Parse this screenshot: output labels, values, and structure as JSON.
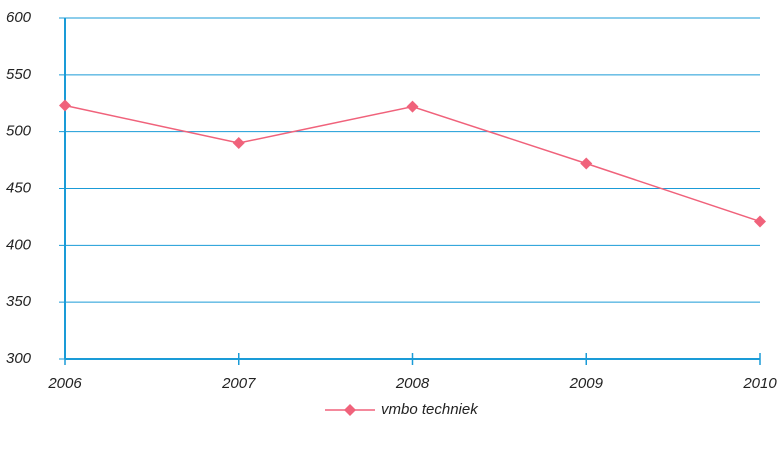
{
  "chart_data": {
    "type": "line",
    "categories": [
      "2006",
      "2007",
      "2008",
      "2009",
      "2010"
    ],
    "series": [
      {
        "name": "vmbo techniek",
        "color": "#f0627b",
        "values": [
          523,
          490,
          522,
          472,
          421
        ]
      }
    ],
    "ylim": [
      300,
      600
    ],
    "yticks": [
      300,
      350,
      400,
      450,
      500,
      550,
      600
    ],
    "grid": true,
    "grid_color": "#1a9bd7",
    "legend": "bottom"
  }
}
